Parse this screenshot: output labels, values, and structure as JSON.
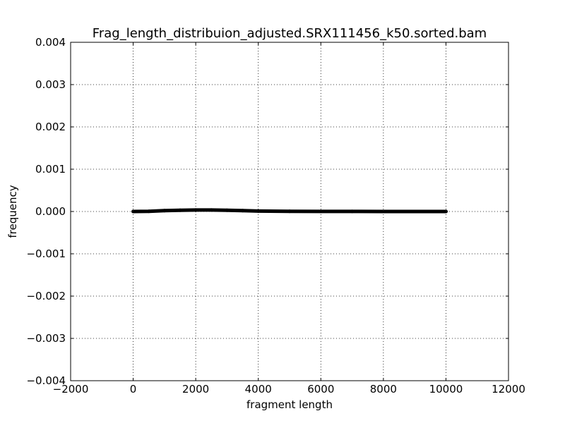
{
  "chart_data": {
    "type": "line",
    "title": "Frag_length_distribuion_adjusted.SRX111456_k50.sorted.bam",
    "xlabel": "fragment length",
    "ylabel": "frequency",
    "xlim": [
      -2000,
      12000
    ],
    "ylim": [
      -0.004,
      0.004
    ],
    "xticks": [
      -2000,
      0,
      2000,
      4000,
      6000,
      8000,
      10000,
      12000
    ],
    "xtick_labels": [
      "−2000",
      "0",
      "2000",
      "4000",
      "6000",
      "8000",
      "10000",
      "12000"
    ],
    "yticks": [
      0.004,
      0.003,
      0.002,
      0.001,
      0.0,
      -0.001,
      -0.002,
      -0.003,
      -0.004
    ],
    "ytick_labels": [
      "0.004",
      "0.003",
      "0.002",
      "0.001",
      "0.000",
      "−0.001",
      "−0.002",
      "−0.003",
      "−0.004"
    ],
    "grid": true,
    "line_color": "#000000",
    "series": [
      {
        "x": [
          0,
          500,
          1000,
          1500,
          2000,
          2500,
          3000,
          3500,
          4000,
          5000,
          6000,
          7000,
          8000,
          9000,
          10000
        ],
        "y": [
          0.0,
          5e-06,
          2e-05,
          3e-05,
          3.5e-05,
          3.5e-05,
          3e-05,
          2e-05,
          1e-05,
          5e-06,
          3e-06,
          2e-06,
          1e-06,
          1e-06,
          0.0
        ]
      }
    ]
  }
}
